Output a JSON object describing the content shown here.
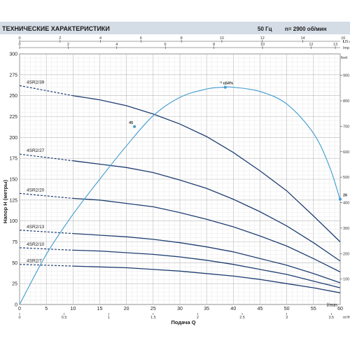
{
  "header": {
    "title": "ТЕХНИЧЕСКИЕ ХАРАКТЕРИСТИКИ",
    "frequency": "50 Гц",
    "speed": "n= 2900 об/мин"
  },
  "chart_data": {
    "type": "line",
    "title": "",
    "xlabel": "Подача Q",
    "x_unit": "l/min",
    "ylabel": "Напор H (метры)",
    "y2_unit": "feet",
    "xlim": [
      0,
      60
    ],
    "ylim": [
      0,
      300
    ],
    "x_ticks": [
      0,
      5,
      10,
      15,
      20,
      25,
      30,
      35,
      40,
      45,
      50,
      55,
      60
    ],
    "y_ticks": [
      0,
      25,
      50,
      75,
      100,
      125,
      150,
      175,
      200,
      225,
      250,
      275,
      300
    ],
    "y2_ticks": [
      100,
      200,
      300,
      400,
      500,
      600,
      700,
      800,
      900
    ],
    "top_axes": [
      {
        "unit": "US g.p.m.",
        "ticks": [
          0,
          2,
          4,
          6,
          8,
          10,
          12,
          14,
          16
        ]
      },
      {
        "unit": "Imp g.p.m.",
        "ticks": [
          0,
          2,
          4,
          6,
          8,
          10,
          12,
          13
        ]
      }
    ],
    "bottom_secondary_axis": {
      "unit": "m³/h",
      "ticks": [
        0,
        0.5,
        1,
        1.5,
        2,
        2.5,
        3,
        3.5
      ]
    },
    "grid": true,
    "series": [
      {
        "name": "4SR2/39",
        "x": [
          10,
          15,
          20,
          25,
          30,
          35,
          40,
          45,
          50,
          55,
          60
        ],
        "y": [
          250,
          245,
          238,
          228,
          216,
          201,
          182,
          160,
          136,
          106,
          75
        ]
      },
      {
        "name": "4SR2/27",
        "x": [
          10,
          15,
          20,
          25,
          30,
          35,
          40,
          45,
          50,
          55,
          60
        ],
        "y": [
          172,
          168,
          164,
          158,
          149,
          139,
          126,
          111,
          94,
          74,
          52
        ]
      },
      {
        "name": "4SR2/20",
        "x": [
          10,
          15,
          20,
          25,
          30,
          35,
          40,
          45,
          50,
          55,
          60
        ],
        "y": [
          127,
          125,
          121,
          117,
          110,
          102,
          93,
          82,
          70,
          55,
          39
        ]
      },
      {
        "name": "4SR2/13",
        "x": [
          10,
          15,
          20,
          25,
          30,
          35,
          40,
          45,
          50,
          55,
          60
        ],
        "y": [
          85,
          83,
          81,
          78,
          74,
          69,
          63,
          55,
          47,
          37,
          26
        ]
      },
      {
        "name": "4SR2/10",
        "x": [
          10,
          15,
          20,
          25,
          30,
          35,
          40,
          45,
          50,
          55,
          60
        ],
        "y": [
          65,
          64,
          62,
          60,
          57,
          53,
          48,
          42,
          36,
          28,
          20
        ]
      },
      {
        "name": "4SR2/7",
        "x": [
          10,
          15,
          20,
          25,
          30,
          35,
          40,
          45,
          50,
          55,
          60
        ],
        "y": [
          46,
          45,
          44,
          42,
          40,
          37,
          34,
          30,
          25,
          20,
          14
        ]
      }
    ],
    "shutoff_dashes": [
      {
        "series": "4SR2/39",
        "x": [
          0,
          10
        ],
        "y": [
          262,
          250
        ]
      },
      {
        "series": "4SR2/27",
        "x": [
          0,
          10
        ],
        "y": [
          180,
          172
        ]
      },
      {
        "series": "4SR2/20",
        "x": [
          0,
          10
        ],
        "y": [
          133,
          127
        ]
      },
      {
        "series": "4SR2/13",
        "x": [
          0,
          10
        ],
        "y": [
          89,
          85
        ]
      },
      {
        "series": "4SR2/10",
        "x": [
          0,
          10
        ],
        "y": [
          68,
          65
        ]
      },
      {
        "series": "4SR2/7",
        "x": [
          0,
          10
        ],
        "y": [
          48,
          46
        ]
      }
    ],
    "efficiency_curve": {
      "x": [
        0,
        5,
        10,
        15,
        20,
        25,
        30,
        35,
        38,
        40,
        45,
        50,
        55,
        58,
        60
      ],
      "y": [
        0,
        60,
        108,
        150,
        190,
        226,
        248,
        258,
        260,
        260,
        255,
        240,
        205,
        165,
        125
      ],
      "dashed_to_x": 2,
      "markers": [
        {
          "x": 21.5,
          "y": 213,
          "label": "45"
        },
        {
          "x": 38.5,
          "y": 260,
          "label": "¹⁾ η54%"
        },
        {
          "x": 60,
          "y": 126,
          "label": "26"
        }
      ]
    }
  }
}
